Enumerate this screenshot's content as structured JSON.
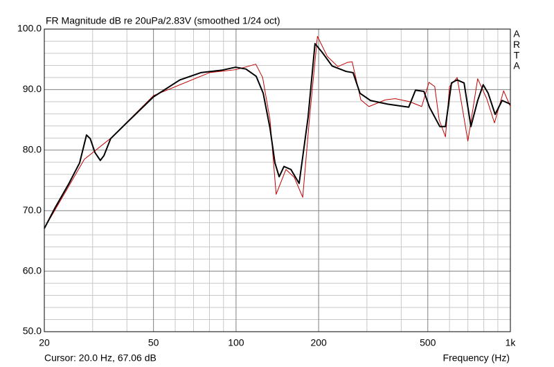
{
  "chart_data": {
    "type": "line",
    "title": "FR Magnitude dB re 20uPa/2.83V (smoothed 1/24 oct)",
    "xlabel": "Frequency (Hz)",
    "cursor": "Cursor: 20.0 Hz, 67.06 dB",
    "watermark": "ARTA",
    "xscale": "log",
    "grid": true,
    "xlim": [
      20,
      1000
    ],
    "ylim": [
      50,
      100
    ],
    "xticks": [
      20,
      50,
      100,
      200,
      500,
      {
        "value": 1000,
        "label": "1k"
      }
    ],
    "yticks": [
      {
        "value": 50,
        "label": "50.0"
      },
      {
        "value": 60,
        "label": "60.0"
      },
      {
        "value": 70,
        "label": "70.0"
      },
      {
        "value": 80,
        "label": "80.0"
      },
      {
        "value": 90,
        "label": "90.0"
      },
      {
        "value": 100,
        "label": "100.0"
      }
    ],
    "x_minor_grid": [
      30,
      40,
      60,
      70,
      80,
      90,
      300,
      400,
      600,
      700,
      800,
      900
    ],
    "y_minor_grid": [
      52,
      54,
      56,
      58,
      62,
      64,
      66,
      68,
      72,
      74,
      76,
      78,
      82,
      84,
      86,
      88,
      92,
      94,
      96,
      98
    ],
    "series": [
      {
        "color": "#c00000",
        "width": 1,
        "x": [
          20,
          28,
          35,
          50,
          80,
          100,
          118,
          125,
          133,
          140,
          152,
          163,
          175,
          185,
          198,
          215,
          235,
          255,
          265,
          285,
          305,
          350,
          380,
          430,
          475,
          505,
          530,
          550,
          580,
          600,
          640,
          700,
          760,
          820,
          875,
          945,
          1000
        ],
        "values": [
          67.06,
          78.5,
          82,
          89,
          92.8,
          93.3,
          94.2,
          92,
          85,
          72.7,
          76.8,
          75.5,
          72.2,
          85,
          98.8,
          95.5,
          93.8,
          94.5,
          94.6,
          88.3,
          87.2,
          88.3,
          88.5,
          88,
          87.2,
          91.2,
          90.5,
          85,
          82.2,
          90.5,
          92,
          81.5,
          91.8,
          88.5,
          84.5,
          89.8,
          87.2
        ]
      },
      {
        "color": "#000000",
        "width": 2,
        "x": [
          20,
          21.9,
          24.6,
          26.9,
          28.5,
          29.4,
          30.6,
          32,
          33,
          34.9,
          39.3,
          50,
          62.4,
          74.4,
          88.6,
          99.6,
          108.6,
          118.4,
          125.6,
          133,
          138.6,
          143.6,
          149.5,
          158.5,
          169.8,
          183,
          194,
          205.7,
          224,
          252,
          267,
          283,
          309,
          357,
          426,
          451,
          484,
          507,
          553,
          580,
          610,
          640,
          678,
          718,
          760,
          796,
          830,
          880,
          933,
          1000
        ],
        "values": [
          67.06,
          70.5,
          74.5,
          77.9,
          82.5,
          81.9,
          79.6,
          78.3,
          79.1,
          81.9,
          84.2,
          88.8,
          91.6,
          92.8,
          93.2,
          93.7,
          93.4,
          92.2,
          89.4,
          83.6,
          77.9,
          75.6,
          77.3,
          76.8,
          74.5,
          85.4,
          97.6,
          96.2,
          93.9,
          93,
          92.8,
          89.4,
          88.2,
          87.6,
          87.1,
          89.9,
          89.7,
          87.1,
          83.9,
          83.9,
          91.1,
          91.6,
          91.1,
          83.9,
          88.2,
          90.8,
          89.4,
          85.9,
          88.2,
          87.6
        ]
      }
    ]
  }
}
